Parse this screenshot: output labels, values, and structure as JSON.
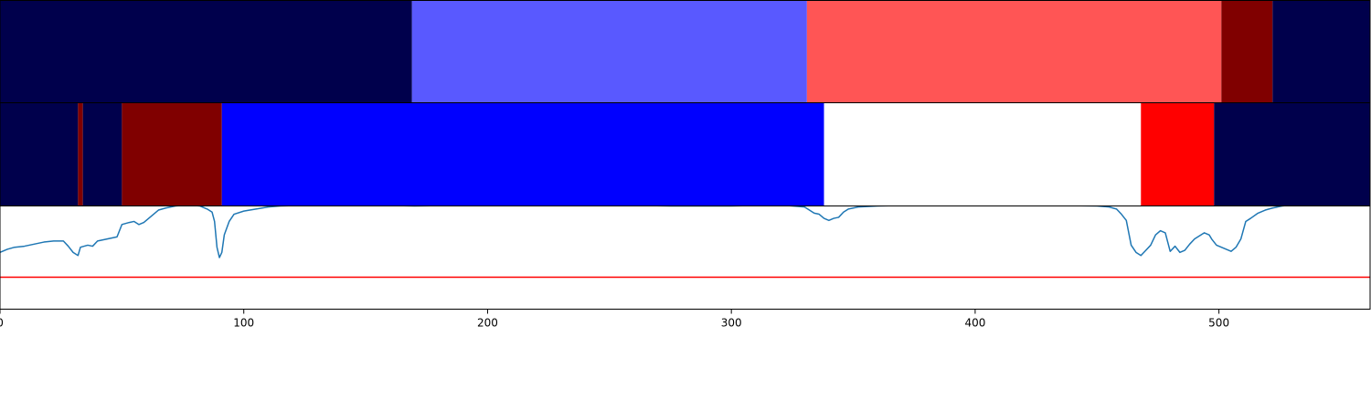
{
  "chart_data": [
    {
      "type": "heatmap",
      "panel": "segmentation-top",
      "segments": [
        {
          "start": 0,
          "end": 169,
          "color": "#00004c"
        },
        {
          "start": 169,
          "end": 331,
          "color": "#5959ff"
        },
        {
          "start": 331,
          "end": 501,
          "color": "#ff5555"
        },
        {
          "start": 501,
          "end": 522,
          "color": "#800000"
        },
        {
          "start": 522,
          "end": 562,
          "color": "#00004c"
        }
      ]
    },
    {
      "type": "heatmap",
      "panel": "segmentation-bottom",
      "segments": [
        {
          "start": 0,
          "end": 32,
          "color": "#00004c"
        },
        {
          "start": 32,
          "end": 34,
          "color": "#800000"
        },
        {
          "start": 34,
          "end": 50,
          "color": "#00004c"
        },
        {
          "start": 50,
          "end": 91,
          "color": "#800000"
        },
        {
          "start": 91,
          "end": 338,
          "color": "#0000ff"
        },
        {
          "start": 338,
          "end": 468,
          "color": "#ffffff"
        },
        {
          "start": 468,
          "end": 498,
          "color": "#ff0000"
        },
        {
          "start": 498,
          "end": 562,
          "color": "#00004c"
        }
      ]
    },
    {
      "type": "line",
      "panel": "signal",
      "xlim": [
        0,
        562
      ],
      "ylim": [
        0,
        1
      ],
      "x_ticks": [
        0,
        100,
        200,
        300,
        400,
        500
      ],
      "grid": false,
      "series": [
        {
          "color": "#1f77b4",
          "points": [
            [
              0,
              0.55
            ],
            [
              3,
              0.58
            ],
            [
              6,
              0.6
            ],
            [
              10,
              0.61
            ],
            [
              14,
              0.63
            ],
            [
              18,
              0.65
            ],
            [
              22,
              0.66
            ],
            [
              26,
              0.66
            ],
            [
              28,
              0.61
            ],
            [
              30,
              0.55
            ],
            [
              32,
              0.52
            ],
            [
              33,
              0.6
            ],
            [
              36,
              0.62
            ],
            [
              38,
              0.61
            ],
            [
              40,
              0.66
            ],
            [
              44,
              0.68
            ],
            [
              46,
              0.69
            ],
            [
              48,
              0.7
            ],
            [
              50,
              0.82
            ],
            [
              53,
              0.84
            ],
            [
              55,
              0.85
            ],
            [
              57,
              0.82
            ],
            [
              59,
              0.84
            ],
            [
              61,
              0.88
            ],
            [
              63,
              0.92
            ],
            [
              65,
              0.96
            ],
            [
              68,
              0.98
            ],
            [
              72,
              1.0
            ],
            [
              77,
              1.01
            ],
            [
              82,
              1.0
            ],
            [
              85,
              0.97
            ],
            [
              87,
              0.94
            ],
            [
              88,
              0.85
            ],
            [
              89,
              0.6
            ],
            [
              90,
              0.5
            ],
            [
              91,
              0.55
            ],
            [
              92,
              0.72
            ],
            [
              94,
              0.85
            ],
            [
              96,
              0.92
            ],
            [
              100,
              0.95
            ],
            [
              105,
              0.97
            ],
            [
              110,
              0.99
            ],
            [
              115,
              1.0
            ],
            [
              130,
              1.01
            ],
            [
              150,
              1.01
            ],
            [
              170,
              1.0
            ],
            [
              200,
              1.01
            ],
            [
              250,
              1.01
            ],
            [
              275,
              1.0
            ],
            [
              300,
              1.0
            ],
            [
              320,
              1.01
            ],
            [
              325,
              1.0
            ],
            [
              330,
              0.99
            ],
            [
              332,
              0.96
            ],
            [
              334,
              0.93
            ],
            [
              336,
              0.92
            ],
            [
              338,
              0.88
            ],
            [
              340,
              0.86
            ],
            [
              342,
              0.88
            ],
            [
              344,
              0.89
            ],
            [
              346,
              0.94
            ],
            [
              348,
              0.97
            ],
            [
              352,
              0.99
            ],
            [
              360,
              1.0
            ],
            [
              380,
              1.01
            ],
            [
              420,
              1.01
            ],
            [
              450,
              1.0
            ],
            [
              455,
              0.99
            ],
            [
              458,
              0.97
            ],
            [
              460,
              0.92
            ],
            [
              462,
              0.86
            ],
            [
              464,
              0.62
            ],
            [
              466,
              0.55
            ],
            [
              468,
              0.52
            ],
            [
              470,
              0.57
            ],
            [
              472,
              0.62
            ],
            [
              474,
              0.72
            ],
            [
              476,
              0.76
            ],
            [
              478,
              0.74
            ],
            [
              480,
              0.56
            ],
            [
              482,
              0.61
            ],
            [
              484,
              0.55
            ],
            [
              486,
              0.57
            ],
            [
              488,
              0.63
            ],
            [
              490,
              0.68
            ],
            [
              492,
              0.71
            ],
            [
              494,
              0.74
            ],
            [
              496,
              0.72
            ],
            [
              497,
              0.68
            ],
            [
              499,
              0.62
            ],
            [
              502,
              0.59
            ],
            [
              505,
              0.56
            ],
            [
              507,
              0.6
            ],
            [
              509,
              0.68
            ],
            [
              511,
              0.85
            ],
            [
              513,
              0.88
            ],
            [
              516,
              0.93
            ],
            [
              519,
              0.96
            ],
            [
              522,
              0.98
            ],
            [
              526,
              1.0
            ],
            [
              530,
              1.01
            ],
            [
              562,
              1.01
            ]
          ]
        },
        {
          "color": "#ff0000",
          "points": [
            [
              0,
              0.31
            ],
            [
              562,
              0.31
            ]
          ]
        }
      ]
    }
  ]
}
